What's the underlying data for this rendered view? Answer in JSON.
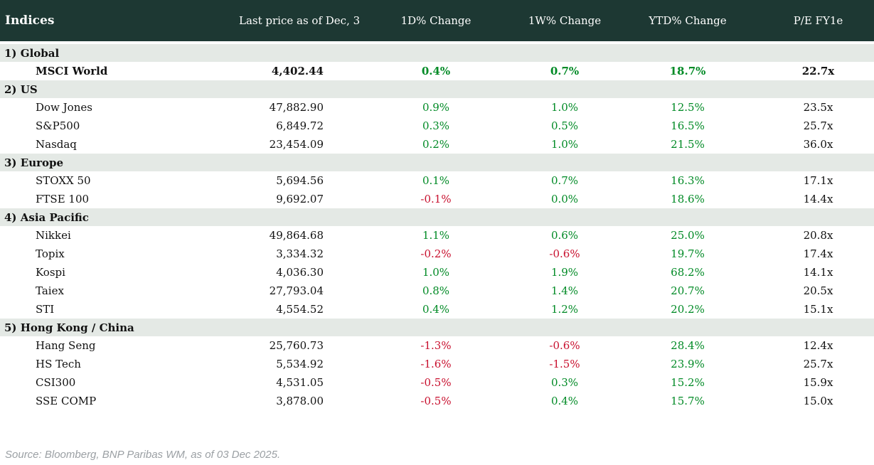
{
  "colors": {
    "header_bg": "#1d3833",
    "header_text": "#ffffff",
    "section_bg": "#e4e9e5",
    "row_bg": "#ffffff",
    "text": "#111111",
    "positive": "#008a25",
    "negative": "#c8102e",
    "source_text": "#9ba0a4"
  },
  "table": {
    "title": "Indices",
    "columns": {
      "last_price": "Last price as of Dec, 3",
      "change_1d": "1D% Change",
      "change_1w": "1W% Change",
      "change_ytd": "YTD% Change",
      "pe": "P/E FY1e"
    },
    "sections": [
      {
        "label": "1) Global",
        "rows": [
          {
            "name": "MSCI World",
            "last": "4,402.44",
            "d1": "0.4%",
            "w1": "0.7%",
            "ytd": "18.7%",
            "pe": "22.7x",
            "bold": true
          }
        ]
      },
      {
        "label": "2) US",
        "rows": [
          {
            "name": "Dow Jones",
            "last": "47,882.90",
            "d1": "0.9%",
            "w1": "1.0%",
            "ytd": "12.5%",
            "pe": "23.5x"
          },
          {
            "name": "S&P500",
            "last": "6,849.72",
            "d1": "0.3%",
            "w1": "0.5%",
            "ytd": "16.5%",
            "pe": "25.7x"
          },
          {
            "name": "Nasdaq",
            "last": "23,454.09",
            "d1": "0.2%",
            "w1": "1.0%",
            "ytd": "21.5%",
            "pe": "36.0x"
          }
        ]
      },
      {
        "label": "3) Europe",
        "rows": [
          {
            "name": "STOXX 50",
            "last": "5,694.56",
            "d1": "0.1%",
            "w1": "0.7%",
            "ytd": "16.3%",
            "pe": "17.1x"
          },
          {
            "name": "FTSE 100",
            "last": "9,692.07",
            "d1": "-0.1%",
            "w1": "0.0%",
            "ytd": "18.6%",
            "pe": "14.4x"
          }
        ]
      },
      {
        "label": "4) Asia Pacific",
        "rows": [
          {
            "name": "Nikkei",
            "last": "49,864.68",
            "d1": "1.1%",
            "w1": "0.6%",
            "ytd": "25.0%",
            "pe": "20.8x"
          },
          {
            "name": "Topix",
            "last": "3,334.32",
            "d1": "-0.2%",
            "w1": "-0.6%",
            "ytd": "19.7%",
            "pe": "17.4x"
          },
          {
            "name": "Kospi",
            "last": "4,036.30",
            "d1": "1.0%",
            "w1": "1.9%",
            "ytd": "68.2%",
            "pe": "14.1x"
          },
          {
            "name": "Taiex",
            "last": "27,793.04",
            "d1": "0.8%",
            "w1": "1.4%",
            "ytd": "20.7%",
            "pe": "20.5x"
          },
          {
            "name": "STI",
            "last": "4,554.52",
            "d1": "0.4%",
            "w1": "1.2%",
            "ytd": "20.2%",
            "pe": "15.1x"
          }
        ]
      },
      {
        "label": "5) Hong Kong / China",
        "rows": [
          {
            "name": "Hang Seng",
            "last": "25,760.73",
            "d1": "-1.3%",
            "w1": "-0.6%",
            "ytd": "28.4%",
            "pe": "12.4x"
          },
          {
            "name": "HS Tech",
            "last": "5,534.92",
            "d1": "-1.6%",
            "w1": "-1.5%",
            "ytd": "23.9%",
            "pe": "25.7x"
          },
          {
            "name": "CSI300",
            "last": "4,531.05",
            "d1": "-0.5%",
            "w1": "0.3%",
            "ytd": "15.2%",
            "pe": "15.9x"
          },
          {
            "name": "SSE COMP",
            "last": "3,878.00",
            "d1": "-0.5%",
            "w1": "0.4%",
            "ytd": "15.7%",
            "pe": "15.0x"
          }
        ]
      }
    ]
  },
  "footer": {
    "source": "Source: Bloomberg, BNP Paribas WM, as of 03 Dec 2025."
  }
}
